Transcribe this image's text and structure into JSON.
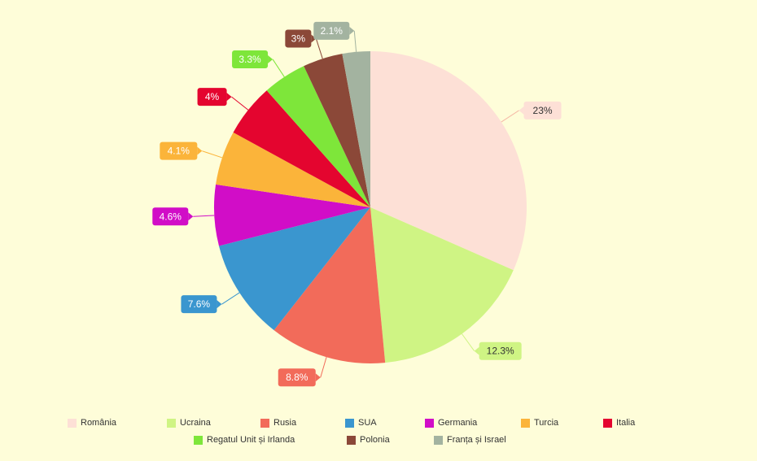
{
  "chart_data": {
    "type": "pie",
    "title": "",
    "categories": [
      "România",
      "Ucraina",
      "Rusia",
      "SUA",
      "Germania",
      "Turcia",
      "Italia",
      "Regatul Unit și Irlanda",
      "Polonia",
      "Franța și Israel"
    ],
    "values": [
      23,
      12.3,
      8.8,
      7.6,
      4.6,
      4.1,
      4,
      3.3,
      3,
      2.1
    ],
    "value_labels": [
      "23%",
      "12.3%",
      "8.8%",
      "7.6%",
      "4.6%",
      "4.1%",
      "4%",
      "3.3%",
      "3%",
      "2.1%"
    ],
    "colors": [
      "#fde0d6",
      "#cff484",
      "#f26b5a",
      "#3a96cf",
      "#d10dc7",
      "#fbb43a",
      "#e4052f",
      "#7ee63a",
      "#8b4838",
      "#a3b3a0"
    ],
    "legend_position": "bottom"
  }
}
